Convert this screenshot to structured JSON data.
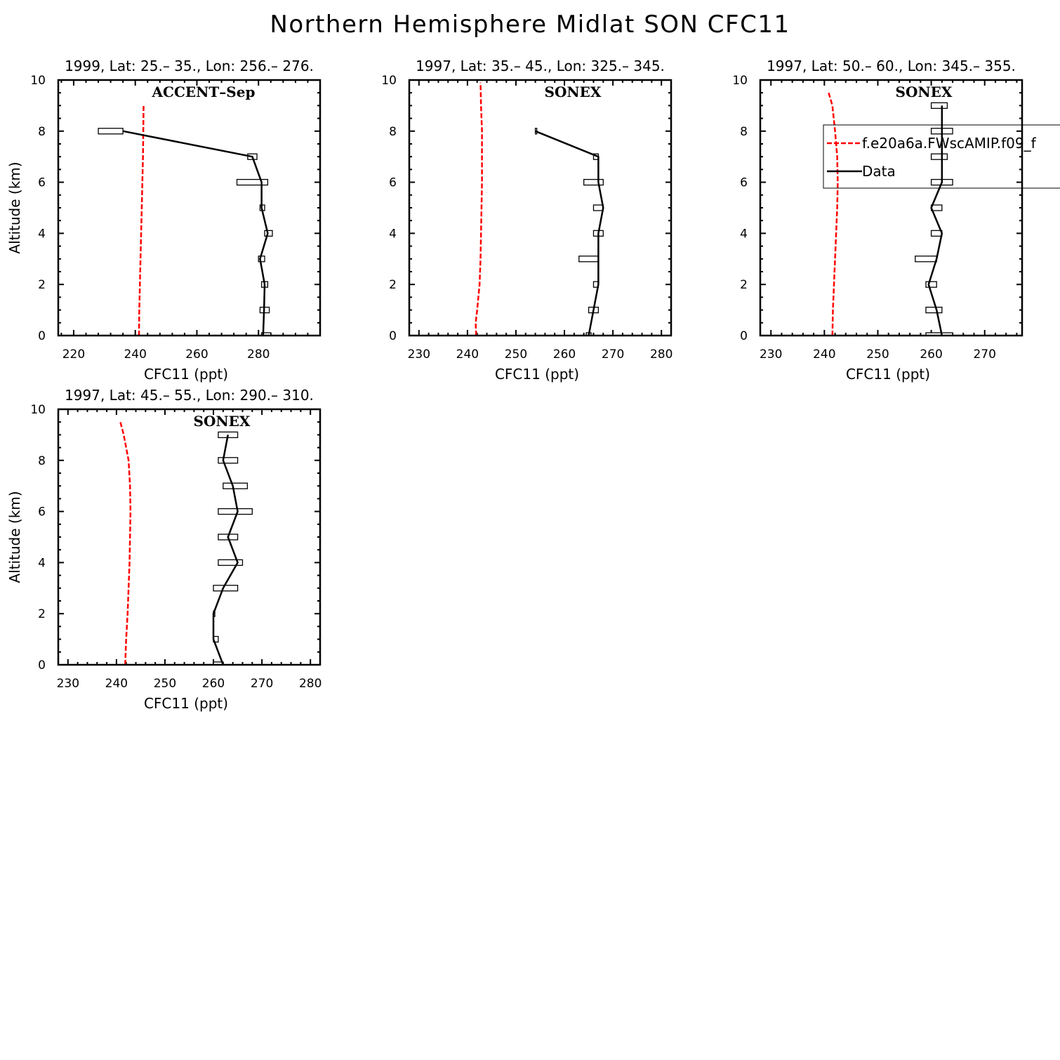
{
  "figure": {
    "title": "Northern Hemisphere Midlat SON CFC11"
  },
  "colors": {
    "model": "#ff0000",
    "data": "#000000"
  },
  "chart_data": [
    {
      "type": "line",
      "title": "1999, Lat: 25.– 35., Lon: 256.– 276.",
      "campaign": "ACCENT–Sep",
      "xlabel": "CFC11 (ppt)",
      "ylabel": "Altitude (km)",
      "xlim": [
        215,
        300
      ],
      "ylim": [
        0,
        10
      ],
      "xticks": [
        220,
        240,
        260,
        280
      ],
      "yticks": [
        0,
        2,
        4,
        6,
        8,
        10
      ],
      "grid": false,
      "series": [
        {
          "kind": "model",
          "points": [
            [
              241.2,
              0
            ],
            [
              241.3,
              1
            ],
            [
              241.5,
              2
            ],
            [
              241.7,
              3
            ],
            [
              241.9,
              4
            ],
            [
              242.1,
              5
            ],
            [
              242.3,
              6
            ],
            [
              242.5,
              7
            ],
            [
              242.6,
              8
            ],
            [
              242.7,
              9
            ]
          ]
        },
        {
          "kind": "data",
          "points": [
            [
              281.5,
              0
            ],
            [
              281.8,
              1
            ],
            [
              282.0,
              2
            ],
            [
              280.5,
              3
            ],
            [
              283.0,
              4
            ],
            [
              281.0,
              5
            ],
            [
              281.0,
              6
            ],
            [
              278.0,
              7
            ],
            [
              236.0,
              8
            ]
          ],
          "ranges": [
            [
              281.0,
              284.0
            ],
            [
              280.5,
              283.5
            ],
            [
              281.0,
              283.0
            ],
            [
              280.0,
              282.0
            ],
            [
              282.0,
              284.5
            ],
            [
              280.5,
              282.0
            ],
            [
              273.0,
              283.0
            ],
            [
              276.5,
              279.5
            ],
            [
              228.0,
              236.0
            ]
          ]
        }
      ]
    },
    {
      "type": "line",
      "title": "1997, Lat: 35.– 45., Lon: 325.– 345.",
      "campaign": "SONEX",
      "xlabel": "CFC11 (ppt)",
      "ylabel": "",
      "xlim": [
        228,
        282
      ],
      "ylim": [
        0,
        10
      ],
      "xticks": [
        230,
        240,
        250,
        260,
        270,
        280
      ],
      "yticks": [
        0,
        2,
        4,
        6,
        8,
        10
      ],
      "grid": false,
      "series": [
        {
          "kind": "model",
          "points": [
            [
              241.8,
              0
            ],
            [
              241.7,
              0.5
            ],
            [
              242.0,
              1
            ],
            [
              242.5,
              2
            ],
            [
              242.7,
              3
            ],
            [
              242.8,
              4
            ],
            [
              242.9,
              5
            ],
            [
              243.0,
              6
            ],
            [
              243.0,
              7
            ],
            [
              243.0,
              8
            ],
            [
              242.8,
              9
            ],
            [
              242.7,
              9.9
            ]
          ]
        },
        {
          "kind": "data",
          "points": [
            [
              265.0,
              0
            ],
            [
              266.0,
              1
            ],
            [
              267.0,
              2
            ],
            [
              267.0,
              3
            ],
            [
              267.0,
              4
            ],
            [
              268.0,
              5
            ],
            [
              267.0,
              6
            ],
            [
              267.0,
              7
            ],
            [
              254.0,
              8
            ]
          ],
          "ranges": [
            [
              264.5,
              265.5
            ],
            [
              265.0,
              267.0
            ],
            [
              266.0,
              267.0
            ],
            [
              263.0,
              267.0
            ],
            [
              266.0,
              268.0
            ],
            [
              266.0,
              268.0
            ],
            [
              264.0,
              268.0
            ],
            [
              266.0,
              267.0
            ],
            [
              254.0,
              254.3
            ]
          ]
        }
      ]
    },
    {
      "type": "line",
      "title": "1997, Lat: 50.– 60., Lon: 345.– 355.",
      "campaign": "SONEX",
      "xlabel": "CFC11 (ppt)",
      "ylabel": "",
      "xlim": [
        228,
        277
      ],
      "ylim": [
        0,
        10
      ],
      "xticks": [
        230,
        240,
        250,
        260,
        270
      ],
      "yticks": [
        0,
        2,
        4,
        6,
        8,
        10
      ],
      "grid": false,
      "legend": {
        "position": "top-right",
        "entries": [
          "f.e20a6a.FWscAMIP.f09_f",
          "Data"
        ]
      },
      "series": [
        {
          "kind": "model",
          "name": "f.e20a6a.FWscAMIP.f09_f",
          "points": [
            [
              241.5,
              0
            ],
            [
              241.6,
              1
            ],
            [
              241.8,
              2
            ],
            [
              242.0,
              3
            ],
            [
              242.2,
              4
            ],
            [
              242.4,
              5
            ],
            [
              242.5,
              6
            ],
            [
              242.4,
              7
            ],
            [
              242.0,
              8
            ],
            [
              241.5,
              9
            ],
            [
              240.8,
              9.5
            ]
          ]
        },
        {
          "kind": "data",
          "name": "Data",
          "points": [
            [
              262.0,
              0
            ],
            [
              261.0,
              1
            ],
            [
              259.5,
              2
            ],
            [
              261.0,
              3
            ],
            [
              262.0,
              4
            ],
            [
              260.0,
              5
            ],
            [
              262.0,
              6
            ],
            [
              262.0,
              7
            ],
            [
              262.0,
              8
            ],
            [
              262.0,
              9
            ]
          ],
          "ranges": [
            [
              259.0,
              264.0
            ],
            [
              259.0,
              262.0
            ],
            [
              259.0,
              261.0
            ],
            [
              257.0,
              261.0
            ],
            [
              260.0,
              262.0
            ],
            [
              260.0,
              262.0
            ],
            [
              260.0,
              264.0
            ],
            [
              260.0,
              263.0
            ],
            [
              260.0,
              264.0
            ],
            [
              260.0,
              263.0
            ]
          ]
        }
      ]
    },
    {
      "type": "line",
      "title": "1997, Lat: 45.– 55., Lon: 290.– 310.",
      "campaign": "SONEX",
      "xlabel": "CFC11 (ppt)",
      "ylabel": "Altitude (km)",
      "xlim": [
        228,
        282
      ],
      "ylim": [
        0,
        10
      ],
      "xticks": [
        230,
        240,
        250,
        260,
        270,
        280
      ],
      "yticks": [
        0,
        2,
        4,
        6,
        8,
        10
      ],
      "grid": false,
      "series": [
        {
          "kind": "model",
          "points": [
            [
              241.8,
              0
            ],
            [
              242.0,
              1
            ],
            [
              242.3,
              2
            ],
            [
              242.5,
              3
            ],
            [
              242.7,
              4
            ],
            [
              242.8,
              5
            ],
            [
              242.9,
              6
            ],
            [
              242.8,
              7
            ],
            [
              242.5,
              8
            ],
            [
              241.5,
              9
            ],
            [
              240.8,
              9.5
            ]
          ]
        },
        {
          "kind": "data",
          "points": [
            [
              262.0,
              0
            ],
            [
              260.0,
              1
            ],
            [
              260.0,
              2
            ],
            [
              262.0,
              3
            ],
            [
              265.0,
              4
            ],
            [
              263.0,
              5
            ],
            [
              265.0,
              6
            ],
            [
              264.0,
              7
            ],
            [
              262.0,
              8
            ],
            [
              263.0,
              9
            ]
          ],
          "ranges": [
            [
              260.0,
              262.0
            ],
            [
              260.0,
              261.0
            ],
            [
              260.0,
              260.0
            ],
            [
              260.0,
              265.0
            ],
            [
              261.0,
              266.0
            ],
            [
              261.0,
              265.0
            ],
            [
              261.0,
              268.0
            ],
            [
              262.0,
              267.0
            ],
            [
              261.0,
              265.0
            ],
            [
              261.0,
              265.0
            ]
          ]
        }
      ]
    }
  ]
}
